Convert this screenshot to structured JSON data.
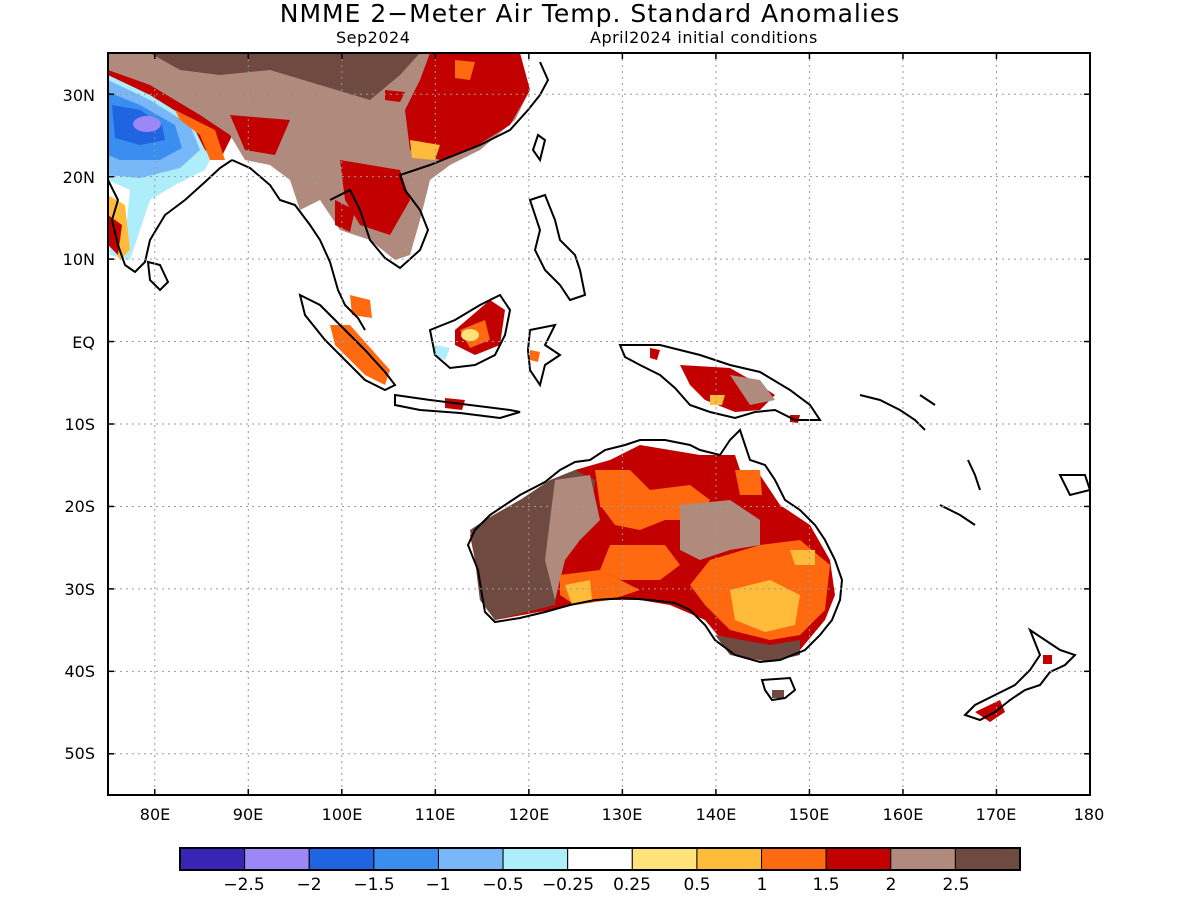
{
  "header": {
    "title": "NMME 2−Meter Air Temp. Standard Anomalies",
    "target_month": "Sep2024",
    "init": "April2024 initial conditions"
  },
  "axes": {
    "lat_labels": [
      "30N",
      "20N",
      "10N",
      "EQ",
      "10S",
      "20S",
      "30S",
      "40S",
      "50S"
    ],
    "lon_labels": [
      "80E",
      "90E",
      "100E",
      "110E",
      "120E",
      "130E",
      "140E",
      "150E",
      "160E",
      "170E",
      "180"
    ]
  },
  "colorbar": {
    "labels": [
      "−2.5",
      "−2",
      "−1.5",
      "−1",
      "−0.5",
      "−0.25",
      "0.25",
      "0.5",
      "1",
      "1.5",
      "2",
      "2.5"
    ],
    "colors": [
      "#3a24b5",
      "#9b87f5",
      "#1f64e0",
      "#3a8ef0",
      "#78b8f8",
      "#aeeefa",
      "#ffffff",
      "#ffe27a",
      "#ffbc3a",
      "#ff6a10",
      "#c20000",
      "#b08a7d",
      "#6e4a40"
    ]
  },
  "chart_data": {
    "type": "heatmap",
    "title": "NMME 2−Meter Air Temp. Standard Anomalies",
    "lon_range": [
      75,
      180
    ],
    "lat_range": [
      -55,
      35
    ],
    "grid": true
  }
}
